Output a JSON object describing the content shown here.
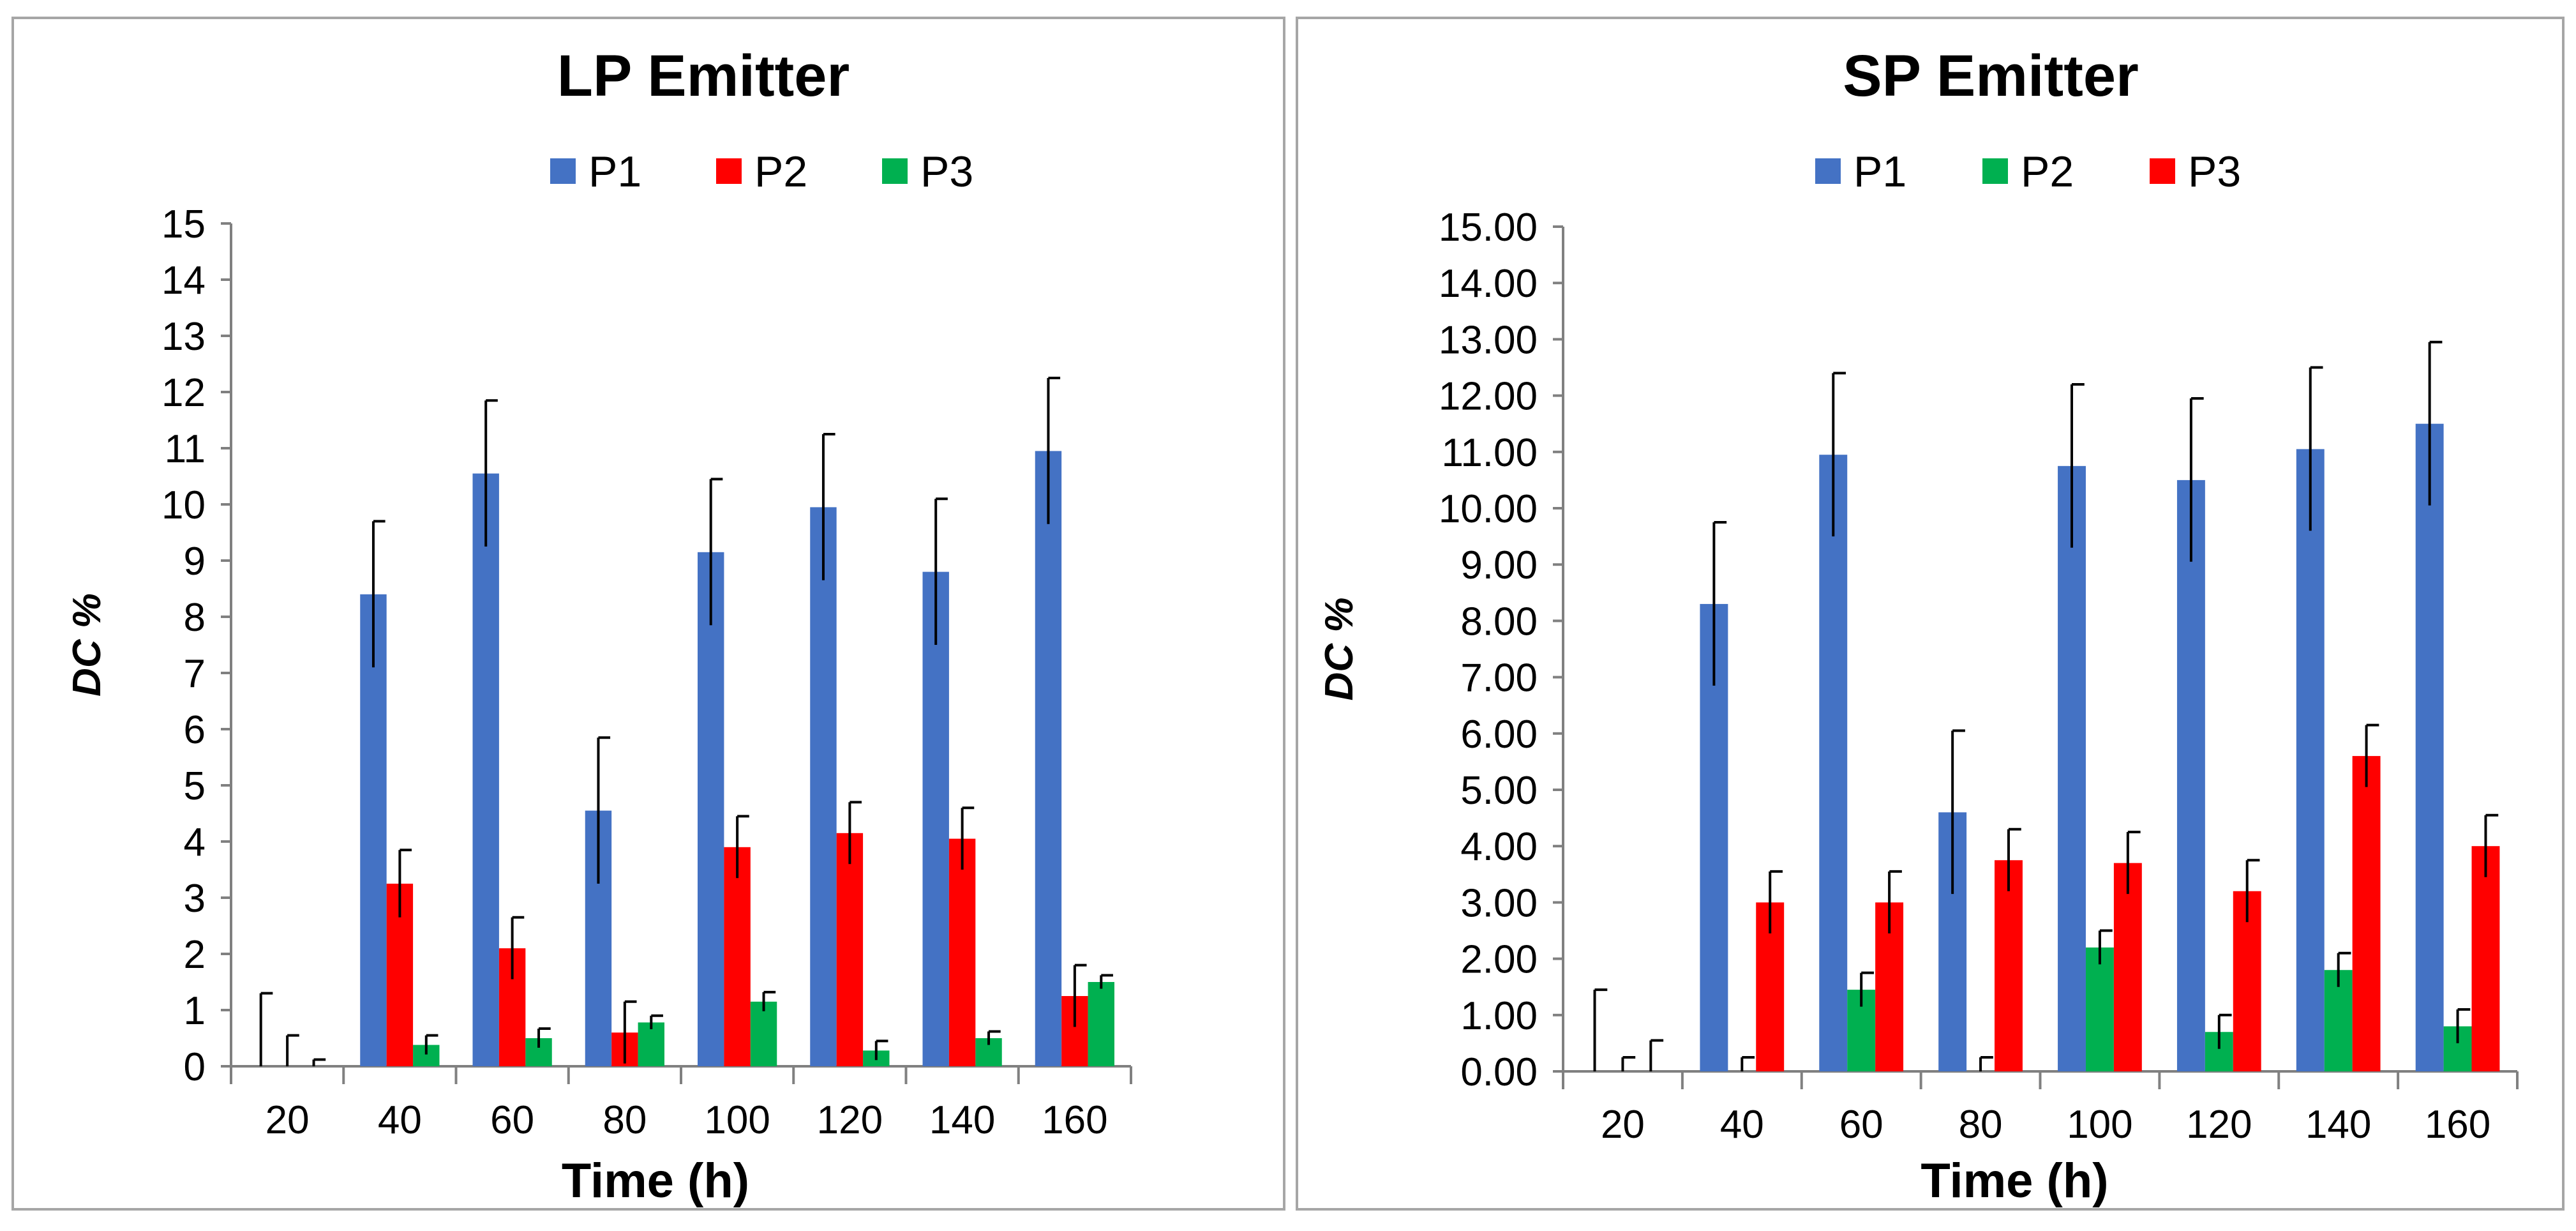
{
  "chart_data": [
    {
      "type": "bar",
      "title": "LP Emitter",
      "xlabel": "Time (h)",
      "ylabel": "DC %",
      "ylim": [
        0,
        15
      ],
      "y_ticks": [
        "0",
        "1",
        "2",
        "3",
        "4",
        "5",
        "6",
        "7",
        "8",
        "9",
        "10",
        "11",
        "12",
        "13",
        "14",
        "15"
      ],
      "categories": [
        "20",
        "40",
        "60",
        "80",
        "100",
        "120",
        "140",
        "160"
      ],
      "series": [
        {
          "name": "P1",
          "color": "#4472c4",
          "values": [
            0,
            8.4,
            10.55,
            4.55,
            9.15,
            9.95,
            8.8,
            10.95
          ],
          "errors": [
            1.3,
            1.3,
            1.3,
            1.3,
            1.3,
            1.3,
            1.3,
            1.3
          ]
        },
        {
          "name": "P2",
          "color": "#ff0000",
          "values": [
            0,
            3.25,
            2.1,
            0.6,
            3.9,
            4.15,
            4.05,
            1.25
          ],
          "errors": [
            0.55,
            0.6,
            0.55,
            0.55,
            0.55,
            0.55,
            0.55,
            0.55
          ]
        },
        {
          "name": "P3",
          "color": "#00b050",
          "values": [
            0,
            0.38,
            0.5,
            0.78,
            1.15,
            0.28,
            0.5,
            1.5
          ],
          "errors": [
            0.12,
            0.17,
            0.17,
            0.12,
            0.17,
            0.17,
            0.12,
            0.12
          ]
        }
      ],
      "legend": "top"
    },
    {
      "type": "bar",
      "title": "SP Emitter",
      "xlabel": "Time (h)",
      "ylabel": "DC %",
      "ylim": [
        0,
        15
      ],
      "y_ticks": [
        "0.00",
        "1.00",
        "2.00",
        "3.00",
        "4.00",
        "5.00",
        "6.00",
        "7.00",
        "8.00",
        "9.00",
        "10.00",
        "11.00",
        "12.00",
        "13.00",
        "14.00",
        "15.00"
      ],
      "categories": [
        "20",
        "40",
        "60",
        "80",
        "100",
        "120",
        "140",
        "160"
      ],
      "series": [
        {
          "name": "P1",
          "color": "#4472c4",
          "values": [
            0,
            8.3,
            10.95,
            4.6,
            10.75,
            10.5,
            11.05,
            11.5
          ],
          "errors": [
            1.45,
            1.45,
            1.45,
            1.45,
            1.45,
            1.45,
            1.45,
            1.45
          ]
        },
        {
          "name": "P2",
          "color": "#00b050",
          "values": [
            0,
            0,
            1.45,
            0,
            2.2,
            0.7,
            1.8,
            0.8
          ],
          "errors": [
            0.25,
            0.25,
            0.3,
            0.25,
            0.3,
            0.3,
            0.3,
            0.3
          ]
        },
        {
          "name": "P3",
          "color": "#ff0000",
          "values": [
            0,
            3.0,
            3.0,
            3.75,
            3.7,
            3.2,
            5.6,
            4.0
          ],
          "errors": [
            0.55,
            0.55,
            0.55,
            0.55,
            0.55,
            0.55,
            0.55,
            0.55
          ]
        }
      ],
      "legend": "top"
    }
  ]
}
